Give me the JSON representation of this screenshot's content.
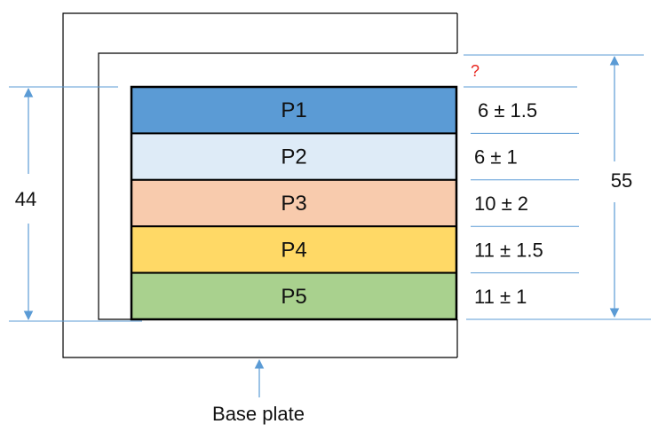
{
  "diagram": {
    "layers": [
      {
        "label": "P1",
        "tolerance": "6 ± 1.5",
        "color": "#5b9bd5"
      },
      {
        "label": "P2",
        "tolerance": "6 ± 1",
        "color": "#deebf7"
      },
      {
        "label": "P3",
        "tolerance": "10 ± 2",
        "color": "#f8cbad"
      },
      {
        "label": "P4",
        "tolerance": "11 ± 1.5",
        "color": "#ffd966"
      },
      {
        "label": "P5",
        "tolerance": "11 ± 1",
        "color": "#a9d18e"
      }
    ],
    "unknown_gap": "?",
    "stack_height": "44",
    "total_height": "55",
    "base_plate_label": "Base plate",
    "colors": {
      "dimension_line": "#5b9bd5",
      "outline": "#000000",
      "unknown": "#e8261f"
    }
  }
}
